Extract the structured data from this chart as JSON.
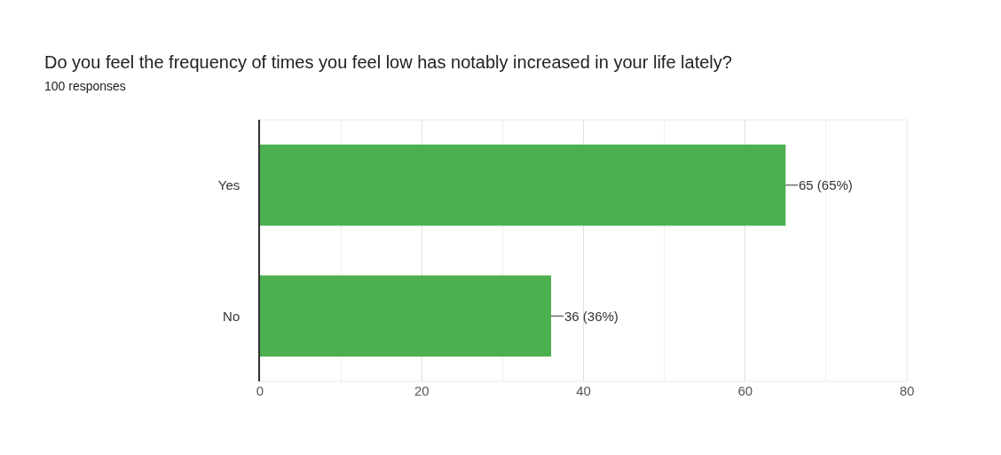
{
  "chart_data": {
    "type": "bar",
    "orientation": "horizontal",
    "title": "Do you feel the frequency of times you feel low has notably increased in your life lately?",
    "subtitle": "100 responses",
    "categories": [
      "Yes",
      "No"
    ],
    "values": [
      65,
      36
    ],
    "value_labels": [
      "65 (65%)",
      "36 (36%)"
    ],
    "color": "#4caf50",
    "xlim": [
      0,
      80
    ],
    "xticks": [
      0,
      20,
      40,
      60,
      80
    ],
    "grid": "x",
    "legend": false
  }
}
